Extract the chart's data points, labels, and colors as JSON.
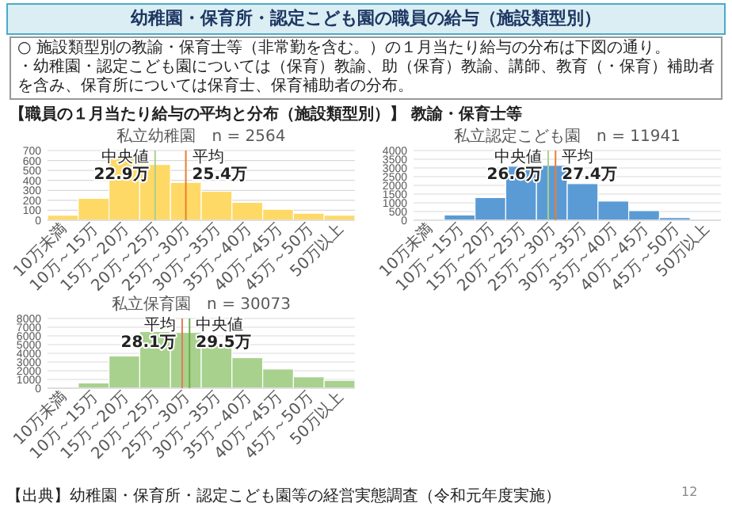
{
  "chart_data": [
    {
      "type": "bar",
      "title": "私立幼稚園　n = 2564",
      "categories": [
        "10万未満",
        "10万～15万",
        "15万～20万",
        "20万～25万",
        "25万～30万",
        "30万～35万",
        "35万～40万",
        "40万～45万",
        "45万～50万",
        "50万以上"
      ],
      "values": [
        50,
        220,
        620,
        560,
        380,
        290,
        180,
        110,
        70,
        50
      ],
      "color": "#ffd966",
      "ylim": [
        0,
        700
      ],
      "yticks": [
        0,
        100,
        200,
        300,
        400,
        500,
        600,
        700
      ],
      "grid": "y",
      "ref_lines": [
        {
          "axis": "x",
          "value": "20万～25万",
          "label": "中央値\n22.9万",
          "color": "#a9d18e"
        },
        {
          "axis": "x",
          "value": "25万～30万",
          "label": "平均\n25.4万",
          "color": "#ed7d31"
        }
      ],
      "annotations": [
        "幼稚園・保育所・認定こども園の職員の給与（施設類型別）",
        "○ 施設類型別の教諭・保育士等（非常勤を含む。）の１月当たり給与の分布は下図の通り。",
        "・幼稚園・認定こども園については（保育）教諭、助（保育）教諭、講師、教育（・保育）補助者を含み、保育所については保育士、保育補助者の分布。",
        "【職員の１月当たり給与の平均と分布（施設類型別）】 教諭・保育士等",
        "【出典】幼稚園・保育所・認定こども園等の経営実態調査（令和元年度実施）",
        "12"
      ]
    },
    {
      "type": "bar",
      "title": "私立認定こども園　n = 11941",
      "categories": [
        "10万未満",
        "10万～15万",
        "15万～20万",
        "20万～25万",
        "25万～30万",
        "30万～35万",
        "35万～40万",
        "40万～45万",
        "45万～50万",
        "50万以上"
      ],
      "values": [
        50,
        300,
        1300,
        3100,
        3150,
        2100,
        1100,
        550,
        150,
        0
      ],
      "color": "#5b9bd5",
      "ylim": [
        0,
        4000
      ],
      "yticks": [
        0,
        500,
        1000,
        1500,
        2000,
        2500,
        3000,
        3500,
        4000
      ],
      "grid": "y",
      "ref_lines": [
        {
          "axis": "x",
          "value": "25万～30万",
          "label": "中央値\n26.6万",
          "color": "#a9d18e"
        },
        {
          "axis": "x",
          "value": "25万～30万",
          "label": "平均\n27.4万",
          "color": "#ed7d31"
        }
      ]
    },
    {
      "type": "bar",
      "title": "私立保育園　n = 30073",
      "categories": [
        "10万未満",
        "10万～15万",
        "15万～20万",
        "20万～25万",
        "25万～30万",
        "30万～35万",
        "35万～40万",
        "40万～45万",
        "45万～50万",
        "50万以上"
      ],
      "values": [
        0,
        600,
        3700,
        6500,
        6400,
        4900,
        3500,
        2200,
        1300,
        900
      ],
      "color": "#a9d18e",
      "ylim": [
        0,
        8000
      ],
      "yticks": [
        0,
        1000,
        2000,
        3000,
        4000,
        5000,
        6000,
        7000,
        8000
      ],
      "grid": "y",
      "ref_lines": [
        {
          "axis": "x",
          "value": "25万～30万",
          "label": "平均\n28.1万",
          "color": "#e07b5b"
        },
        {
          "axis": "x",
          "value": "25万～30万",
          "label": "中央値\n29.5万",
          "color": "#70ad47"
        }
      ]
    }
  ]
}
